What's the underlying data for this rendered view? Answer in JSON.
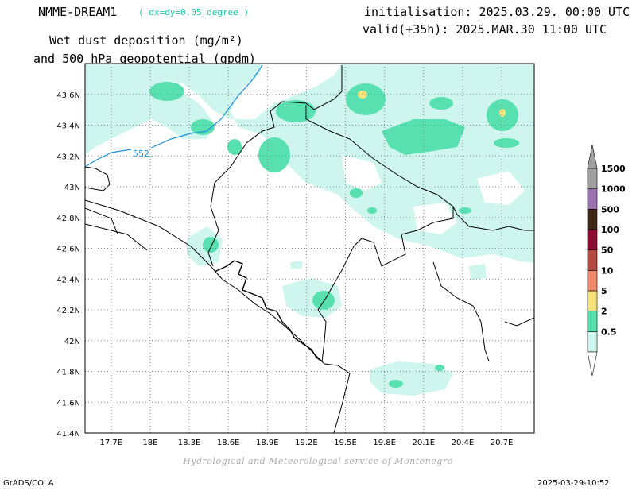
{
  "header": {
    "model_name": "NMME-DREAM1",
    "model_resolution": "( dx=dy=0.05 degree )",
    "title_line1": "Wet dust deposition (mg/m²)",
    "title_line2": "and 500 hPa geopotential (gpdm)",
    "initialisation": "initialisation: 2025.03.29. 00:00 UTC",
    "valid": "valid(+35h): 2025.MAR.30 11:00 UTC"
  },
  "map": {
    "lon_range": [
      17.5,
      20.95
    ],
    "lat_range": [
      41.4,
      43.8
    ],
    "lon_ticks": [
      "17.7E",
      "18E",
      "18.3E",
      "18.6E",
      "18.9E",
      "19.2E",
      "19.5E",
      "19.8E",
      "20.1E",
      "20.4E",
      "20.7E"
    ],
    "lat_ticks": [
      "43.6N",
      "43.4N",
      "43.2N",
      "43N",
      "42.8N",
      "42.6N",
      "42.4N",
      "42.2N",
      "42N",
      "41.8N",
      "41.6N",
      "41.4N"
    ],
    "grid": true,
    "contour_label": "552",
    "contour_color": "#1e90e0"
  },
  "legend": {
    "levels": [
      {
        "label": "1500",
        "color": "#a0a0a0"
      },
      {
        "label": "1000",
        "color": "#9a72b0"
      },
      {
        "label": "500",
        "color": "#3c2614"
      },
      {
        "label": "100",
        "color": "#8c0c34"
      },
      {
        "label": "50",
        "color": "#b34a40"
      },
      {
        "label": "10",
        "color": "#ee8a6a"
      },
      {
        "label": "5",
        "color": "#f7e27e"
      },
      {
        "label": "2",
        "color": "#58e0b0"
      },
      {
        "label": "0.5",
        "color": "#cff6ee"
      }
    ]
  },
  "footer": {
    "credit": "Hydrological and Meteorological service of Montenegro",
    "software": "GrADS/COLA",
    "timestamp": "2025-03-29-10:52"
  }
}
